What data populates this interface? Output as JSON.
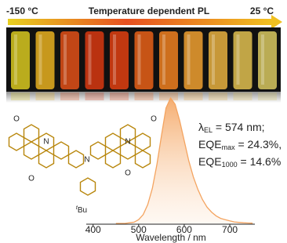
{
  "chart_data": {
    "type": "area",
    "header": {
      "left_label": "-150 °C",
      "title": "Temperature dependent PL",
      "right_label": "25 °C"
    },
    "x_label": "Wavelength / nm",
    "x": [
      450,
      460,
      470,
      480,
      490,
      500,
      510,
      520,
      530,
      540,
      550,
      560,
      570,
      580,
      590,
      600,
      610,
      620,
      630,
      640,
      650,
      660,
      670,
      680,
      690,
      700,
      710,
      720,
      730,
      740,
      750
    ],
    "values": [
      0,
      0,
      0,
      0.005,
      0.01,
      0.03,
      0.07,
      0.15,
      0.28,
      0.47,
      0.7,
      0.92,
      1.0,
      0.95,
      0.82,
      0.66,
      0.5,
      0.37,
      0.27,
      0.19,
      0.13,
      0.09,
      0.06,
      0.04,
      0.03,
      0.02,
      0.012,
      0.008,
      0.005,
      0.003,
      0.002
    ],
    "color": "#f4a460",
    "xlim": [
      385,
      755
    ],
    "ylim": [
      0,
      1
    ],
    "xticks": [
      400,
      500,
      600,
      700
    ],
    "annotations": [
      {
        "symbol": "λ",
        "sub": "EL",
        "text": " = 574 nm;"
      },
      {
        "symbol": "EQE",
        "sub": "max",
        "text": " = 24.3%,"
      },
      {
        "symbol": "EQE",
        "sub": "1000",
        "text": " = 14.6%"
      }
    ],
    "molecule": {
      "atoms": [
        "O",
        "N",
        "O",
        "N",
        "O",
        "N",
        "O"
      ],
      "substituent": {
        "prefix": "t",
        "text": "Bu"
      }
    }
  }
}
